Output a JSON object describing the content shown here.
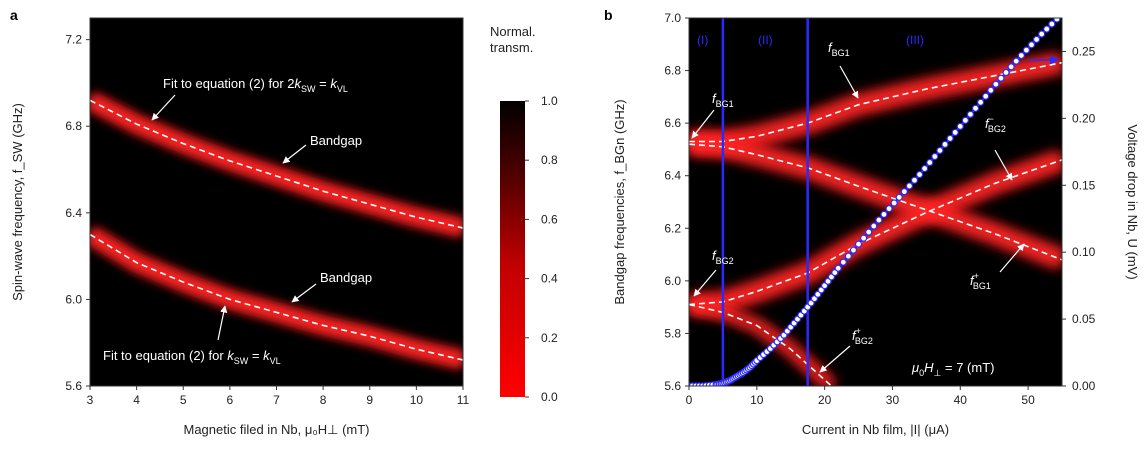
{
  "figure": {
    "panel_a_label": "a",
    "panel_b_label": "b",
    "colorbar_title_line1": "Normal.",
    "colorbar_title_line2": "transm."
  },
  "chart_data": [
    {
      "type": "heatmap",
      "panel": "a",
      "xlabel": "Magnetic filed in Nb, μ₀H⊥ (mT)",
      "ylabel": "Spin-wave frequency, f_SW (GHz)",
      "xlim": [
        3,
        11
      ],
      "ylim": [
        5.6,
        7.3
      ],
      "xticks": [
        "3",
        "4",
        "5",
        "6",
        "7",
        "8",
        "9",
        "10",
        "11"
      ],
      "yticks": [
        "5.6",
        "6.0",
        "6.4",
        "6.8",
        "7.2"
      ],
      "bands": [
        {
          "name": "upper",
          "x": [
            3,
            4,
            5,
            6,
            7,
            8,
            9,
            10,
            11
          ],
          "y": [
            6.92,
            6.81,
            6.72,
            6.64,
            6.57,
            6.5,
            6.44,
            6.38,
            6.33
          ]
        },
        {
          "name": "lower",
          "x": [
            3,
            4,
            5,
            6,
            7,
            8,
            9,
            10,
            11
          ],
          "y": [
            6.3,
            6.17,
            6.08,
            6.0,
            5.94,
            5.88,
            5.83,
            5.77,
            5.72
          ]
        }
      ],
      "annotations": [
        {
          "text": "Fit to equation (2) for 2k_SW = k_VL",
          "pre": "Fit to equation (2) for 2",
          "k": "k",
          "sub1": "SW",
          "mid": " = ",
          "k2": "k",
          "sub2": "VL"
        },
        {
          "text": "Bandgap",
          "label": "Bandgap"
        },
        {
          "text": "Bandgap",
          "label": "Bandgap"
        },
        {
          "text": "Fit to equation (2) for k_SW = k_VL",
          "pre": "Fit to equation (2) for ",
          "k": "k",
          "sub1": "SW",
          "mid": " = ",
          "k2": "k",
          "sub2": "VL"
        }
      ],
      "colorbar": {
        "range": [
          0.0,
          1.0
        ],
        "ticks": [
          "0.0",
          "0.2",
          "0.4",
          "0.6",
          "0.8",
          "1.0"
        ],
        "low_color": "#ff0000",
        "high_color": "#000000"
      }
    },
    {
      "type": "heatmap",
      "panel": "b",
      "xlabel": "Current in Nb film, |I| (μA)",
      "ylabel": "Bandgap frequencies, f_BGn (GHz)",
      "y2label": "Voltage drop in Nb, U (mV)",
      "xlim": [
        0,
        55
      ],
      "ylim": [
        5.6,
        7.0
      ],
      "y2lim": [
        0,
        0.275
      ],
      "xticks": [
        "0",
        "10",
        "20",
        "30",
        "40",
        "50"
      ],
      "yticks": [
        "5.6",
        "5.8",
        "6.0",
        "6.2",
        "6.4",
        "6.6",
        "6.8",
        "7.0"
      ],
      "y2ticks": [
        "0.00",
        "0.05",
        "0.10",
        "0.15",
        "0.20",
        "0.25"
      ],
      "regions": [
        "(I)",
        "(II)",
        "(III)"
      ],
      "region_bounds": [
        5,
        17.5
      ],
      "bands": [
        {
          "name": "f_BG1",
          "x": [
            0,
            5,
            10,
            17.5,
            25,
            35,
            45,
            55
          ],
          "y": [
            6.53,
            6.53,
            6.55,
            6.6,
            6.67,
            6.73,
            6.78,
            6.83
          ]
        },
        {
          "name": "f_BG2-",
          "x": [
            0,
            5,
            10,
            17.5,
            25,
            35,
            45,
            55
          ],
          "y": [
            5.91,
            5.92,
            5.96,
            6.03,
            6.14,
            6.26,
            6.37,
            6.46
          ]
        },
        {
          "name": "f_BG1+",
          "x": [
            0,
            5,
            10,
            17.5,
            25,
            35,
            45,
            55
          ],
          "y": [
            6.52,
            6.51,
            6.48,
            6.43,
            6.36,
            6.27,
            6.18,
            6.08
          ]
        },
        {
          "name": "f_BG2+",
          "x": [
            0,
            5,
            10,
            15,
            18,
            21
          ],
          "y": [
            5.91,
            5.88,
            5.83,
            5.74,
            5.67,
            5.6
          ]
        }
      ],
      "voltage_series": {
        "name": "U",
        "x": [
          0,
          2,
          4,
          5,
          6,
          7,
          8,
          9,
          10,
          12,
          14,
          16,
          18,
          20,
          22,
          25,
          28,
          31,
          34,
          37,
          40,
          43,
          46,
          49,
          52,
          55
        ],
        "y": [
          0.0,
          0.0,
          0.001,
          0.002,
          0.004,
          0.007,
          0.01,
          0.014,
          0.019,
          0.028,
          0.038,
          0.05,
          0.062,
          0.075,
          0.088,
          0.106,
          0.124,
          0.141,
          0.158,
          0.176,
          0.194,
          0.212,
          0.23,
          0.247,
          0.263,
          0.278
        ]
      },
      "labels": {
        "fBG1_top": {
          "f": "f",
          "sub": "BG1",
          "sup": ""
        },
        "fBG1_left": {
          "f": "f",
          "sub": "BG1",
          "sup": ""
        },
        "fBG2_minus": {
          "f": "f",
          "sub": "BG2",
          "sup": "−"
        },
        "fBG2_left": {
          "f": "f",
          "sub": "BG2",
          "sup": ""
        },
        "fBG1_plus": {
          "f": "f",
          "sub": "BG1",
          "sup": "+"
        },
        "fBG2_plus": {
          "f": "f",
          "sub": "BG2",
          "sup": "+"
        },
        "field_note": {
          "pre": "μ",
          "sub": "0",
          "mid": "H",
          "sub2": "⊥",
          "post": " = 7 (mT)"
        }
      }
    }
  ]
}
